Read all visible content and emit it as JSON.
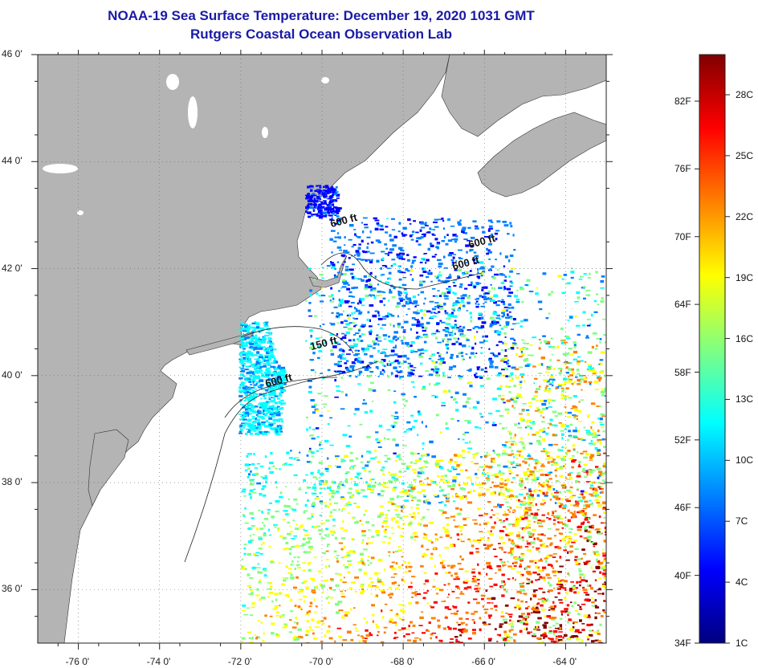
{
  "title": "NOAA-19 Sea Surface Temperature:  December 19, 2020 1031 GMT",
  "subtitle": "Rutgers Coastal Ocean Observation Lab",
  "map": {
    "lon_range": [
      -77,
      -63
    ],
    "lat_range": [
      35,
      46
    ],
    "lon_ticks": [
      {
        "value": -76,
        "label": "-76 0'"
      },
      {
        "value": -74,
        "label": "-74 0'"
      },
      {
        "value": -72,
        "label": "-72 0'"
      },
      {
        "value": -70,
        "label": "-70 0'"
      },
      {
        "value": -68,
        "label": "-68 0'"
      },
      {
        "value": -66,
        "label": "-66 0'"
      },
      {
        "value": -64,
        "label": "-64 0'"
      }
    ],
    "lat_ticks": [
      {
        "value": 46,
        "label": "46 0'"
      },
      {
        "value": 44,
        "label": "44 0'"
      },
      {
        "value": 42,
        "label": "42 0'"
      },
      {
        "value": 40,
        "label": "40 0'"
      },
      {
        "value": 38,
        "label": "38 0'"
      },
      {
        "value": 36,
        "label": "36 0'"
      }
    ],
    "depth_labels": [
      {
        "text": "600 ft",
        "lon": -69.8,
        "lat": 42.9
      },
      {
        "text": "600 ft",
        "lon": -66.4,
        "lat": 42.5
      },
      {
        "text": "600 ft",
        "lon": -66.8,
        "lat": 42.1
      },
      {
        "text": "150 ft",
        "lon": -70.3,
        "lat": 40.6
      },
      {
        "text": "600 ft",
        "lon": -71.4,
        "lat": 39.9
      }
    ],
    "land_color": "#b4b4b4",
    "ocean_color": "#ffffff"
  },
  "colorbar": {
    "fahrenheit": [
      "82F",
      "76F",
      "70F",
      "64F",
      "58F",
      "52F",
      "46F",
      "40F",
      "34F"
    ],
    "celsius": [
      "28C",
      "25C",
      "22C",
      "19C",
      "16C",
      "13C",
      "10C",
      "7C",
      "4C",
      "1C"
    ],
    "stops": [
      "#00007f",
      "#0000ff",
      "#0080ff",
      "#00ffff",
      "#80ff80",
      "#ffff00",
      "#ff8000",
      "#ff0000",
      "#800000"
    ]
  }
}
